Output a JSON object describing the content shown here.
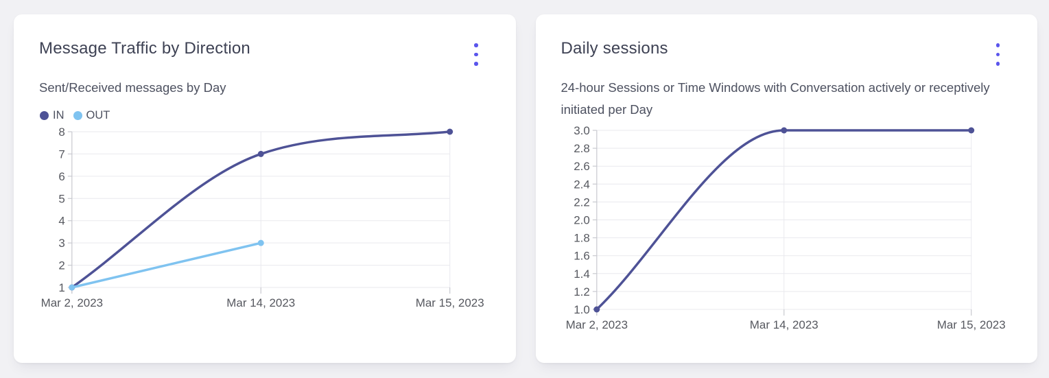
{
  "colors": {
    "bg": "#f1f1f4",
    "card": "#ffffff",
    "title_text": "#3e4254",
    "subtitle_text": "#4d5160",
    "tick_text": "#56585f",
    "grid": "#e9e9ee",
    "axis": "#c8c9cf",
    "accent": "#5a55ec",
    "line_primary": "#4e5296",
    "line_secondary": "#7fc3f0"
  },
  "chart_data": [
    {
      "type": "line",
      "title": "Message Traffic by Direction",
      "subtitle": "Sent/Received messages by Day",
      "x": [
        "Mar 2, 2023",
        "Mar 14, 2023",
        "Mar 15, 2023"
      ],
      "series": [
        {
          "name": "IN",
          "color": "#4e5296",
          "values": [
            1,
            7,
            8
          ]
        },
        {
          "name": "OUT",
          "color": "#7fc3f0",
          "values": [
            1,
            3,
            null
          ]
        }
      ],
      "ylim": [
        1,
        8
      ],
      "yticks": [
        1,
        2,
        3,
        4,
        5,
        6,
        7,
        8
      ],
      "ytick_decimals": 0,
      "legend": {
        "visible": true,
        "position": "top-left",
        "entries": [
          "IN",
          "OUT"
        ]
      },
      "grid": true,
      "curve": "monotone"
    },
    {
      "type": "line",
      "title": "Daily sessions",
      "subtitle": "24-hour Sessions or Time Windows with Conversation actively or receptively initiated per Day",
      "x": [
        "Mar 2, 2023",
        "Mar 14, 2023",
        "Mar 15, 2023"
      ],
      "series": [
        {
          "name": "Daily sessions",
          "color": "#4e5296",
          "values": [
            1.0,
            3.0,
            3.0
          ]
        }
      ],
      "ylim": [
        1.0,
        3.0
      ],
      "yticks": [
        1.0,
        1.2,
        1.4,
        1.6,
        1.8,
        2.0,
        2.2,
        2.4,
        2.6,
        2.8,
        3.0
      ],
      "ytick_decimals": 1,
      "legend": {
        "visible": false
      },
      "grid": true,
      "curve": "monotone"
    }
  ]
}
